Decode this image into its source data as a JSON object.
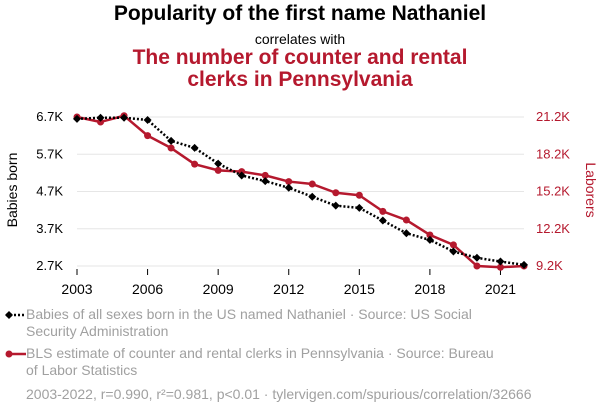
{
  "header": {
    "title": "Popularity of the first name Nathaniel",
    "connector": "correlates with",
    "title2_line1": "The number of counter and rental",
    "title2_line2": "clerks in Pennsylvania"
  },
  "legend": {
    "series1_line1": "Babies of all sexes born in the US named Nathaniel · Source: US Social",
    "series1_line2": "Security Administration",
    "series2_line1": "BLS estimate of counter and rental clerks in Pennsylvania · Source: Bureau",
    "series2_line2": "of Labor Statistics"
  },
  "footer": "2003-2022, r=0.990, r²=0.981, p<0.01 · tylervigen.com/spurious/correlation/32666",
  "colors": {
    "series1": "#000000",
    "series2": "#b5192e",
    "grid": "#e6e6e6",
    "footer": "#a0a0a0"
  },
  "chart_data": {
    "type": "line",
    "x": [
      2003,
      2004,
      2005,
      2006,
      2007,
      2008,
      2009,
      2010,
      2011,
      2012,
      2013,
      2014,
      2015,
      2016,
      2017,
      2018,
      2019,
      2020,
      2021,
      2022
    ],
    "x_ticks": [
      2003,
      2006,
      2009,
      2012,
      2015,
      2018,
      2021
    ],
    "xlim": [
      2003,
      2022
    ],
    "ylabel_left": "Babies born",
    "ylabel_right": "Laborers",
    "y_left_ticks": [
      "6.7K",
      "5.7K",
      "4.7K",
      "3.7K",
      "2.7K"
    ],
    "y_left_tick_values": [
      6700,
      5700,
      4700,
      3700,
      2700
    ],
    "y_left_lim": [
      2700,
      6700
    ],
    "y_right_ticks": [
      "21.2K",
      "18.2K",
      "15.2K",
      "12.2K",
      "9.2K"
    ],
    "y_right_tick_values": [
      21200,
      18200,
      15200,
      12200,
      9200
    ],
    "y_right_lim": [
      9200,
      21200
    ],
    "grid": true,
    "series": [
      {
        "name": "Babies of all sexes born in the US named Nathaniel",
        "axis": "left",
        "style": "dotted",
        "marker": "diamond",
        "values": [
          6650,
          6680,
          6680,
          6620,
          6060,
          5870,
          5450,
          5130,
          4980,
          4800,
          4560,
          4320,
          4260,
          3920,
          3580,
          3400,
          3090,
          2920,
          2820,
          2730
        ]
      },
      {
        "name": "BLS estimate of counter and rental clerks in Pennsylvania",
        "axis": "right",
        "style": "solid",
        "marker": "circle",
        "values": [
          21200,
          20800,
          21300,
          19700,
          18700,
          17400,
          16900,
          16800,
          16500,
          16000,
          15800,
          15100,
          14900,
          13600,
          12900,
          11700,
          10900,
          9200,
          9100,
          9200
        ]
      }
    ]
  }
}
